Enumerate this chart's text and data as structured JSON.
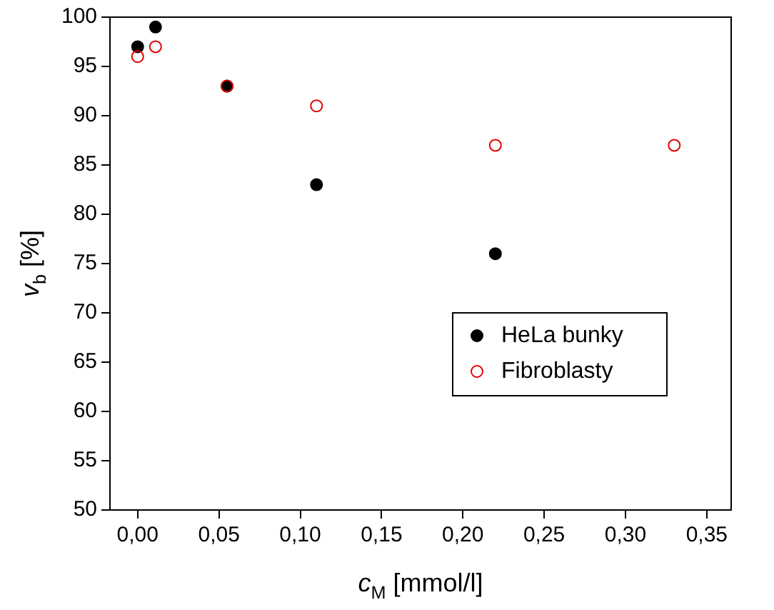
{
  "chart_data": {
    "type": "scatter",
    "xlabel": "c$_{M}$ [mmol/l]",
    "ylabel": "v$_{b}$ [%]",
    "xlim": [
      -0.017,
      0.365
    ],
    "ylim": [
      50,
      100
    ],
    "xticks": [
      {
        "value": 0,
        "label": "0,00"
      },
      {
        "value": 0.05,
        "label": "0,05"
      },
      {
        "value": 0.1,
        "label": "0,10"
      },
      {
        "value": 0.15,
        "label": "0,15"
      },
      {
        "value": 0.2,
        "label": "0,20"
      },
      {
        "value": 0.25,
        "label": "0,25"
      },
      {
        "value": 0.3,
        "label": "0,30"
      },
      {
        "value": 0.35,
        "label": "0,35"
      }
    ],
    "yticks": [
      50,
      55,
      60,
      65,
      70,
      75,
      80,
      85,
      90,
      95,
      100
    ],
    "legend": "bottom right",
    "marker": "circle",
    "series": [
      {
        "name": "HeLa bunky",
        "color": "#000000",
        "x": [
          0,
          0.011,
          0.055,
          0.11,
          0.22
        ],
        "values": [
          97,
          99,
          93,
          83,
          76
        ]
      },
      {
        "name": "Fibroblasty",
        "color": "#e00000",
        "x": [
          0,
          0.011,
          0.055,
          0.11,
          0.22,
          0.33
        ],
        "values": [
          96,
          97,
          93,
          91,
          87,
          87
        ]
      }
    ]
  }
}
